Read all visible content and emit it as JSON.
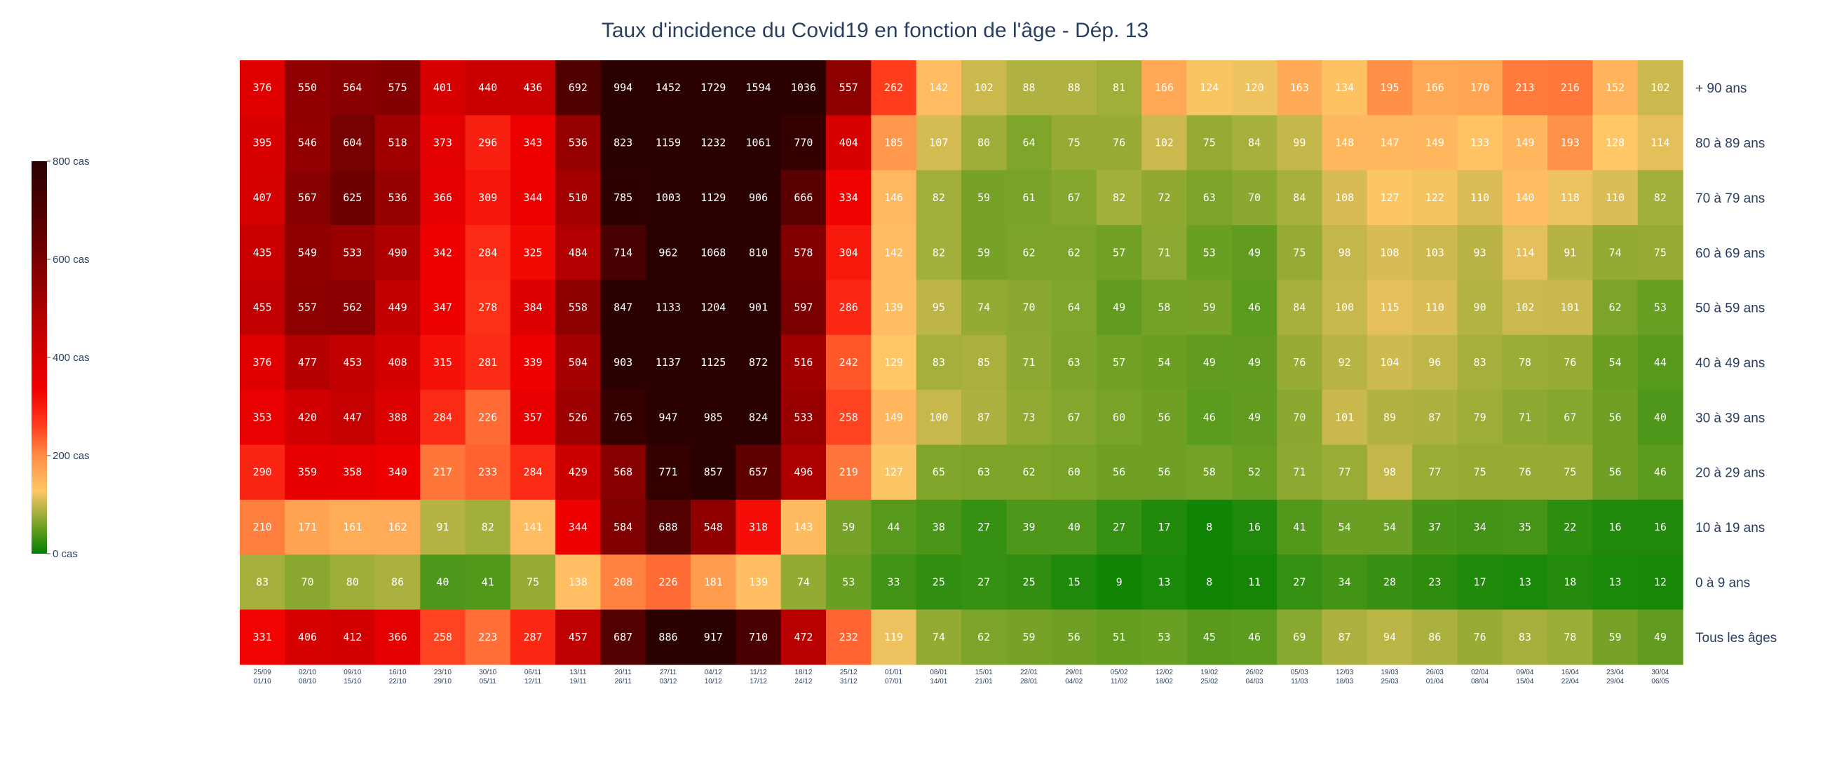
{
  "chart_data": {
    "type": "heatmap",
    "title": "Taux d'incidence du Covid19 en fonction de l'âge - Dép. 13",
    "rows": [
      "+ 90 ans",
      "80 à 89 ans",
      "70 à 79 ans",
      "60 à 69 ans",
      "50 à 59 ans",
      "40 à 49 ans",
      "30 à 39 ans",
      "20 à 29 ans",
      "10 à 19 ans",
      "0 à 9 ans",
      "Tous les âges"
    ],
    "columns": [
      [
        "25/09",
        "01/10"
      ],
      [
        "02/10",
        "08/10"
      ],
      [
        "09/10",
        "15/10"
      ],
      [
        "16/10",
        "22/10"
      ],
      [
        "23/10",
        "29/10"
      ],
      [
        "30/10",
        "05/11"
      ],
      [
        "06/11",
        "12/11"
      ],
      [
        "13/11",
        "19/11"
      ],
      [
        "20/11",
        "26/11"
      ],
      [
        "27/11",
        "03/12"
      ],
      [
        "04/12",
        "10/12"
      ],
      [
        "11/12",
        "17/12"
      ],
      [
        "18/12",
        "24/12"
      ],
      [
        "25/12",
        "31/12"
      ],
      [
        "01/01",
        "07/01"
      ],
      [
        "08/01",
        "14/01"
      ],
      [
        "15/01",
        "21/01"
      ],
      [
        "22/01",
        "28/01"
      ],
      [
        "29/01",
        "04/02"
      ],
      [
        "05/02",
        "11/02"
      ],
      [
        "12/02",
        "18/02"
      ],
      [
        "19/02",
        "25/02"
      ],
      [
        "26/02",
        "04/03"
      ],
      [
        "05/03",
        "11/03"
      ],
      [
        "12/03",
        "18/03"
      ],
      [
        "19/03",
        "25/03"
      ],
      [
        "26/03",
        "01/04"
      ],
      [
        "02/04",
        "08/04"
      ],
      [
        "09/04",
        "15/04"
      ],
      [
        "16/04",
        "22/04"
      ],
      [
        "23/04",
        "29/04"
      ],
      [
        "30/04",
        "06/05"
      ]
    ],
    "values": [
      [
        376,
        550,
        564,
        575,
        401,
        440,
        436,
        692,
        994,
        1452,
        1729,
        1594,
        1036,
        557,
        262,
        142,
        102,
        88,
        88,
        81,
        166,
        124,
        120,
        163,
        134,
        195,
        166,
        170,
        213,
        216,
        152,
        102
      ],
      [
        395,
        546,
        604,
        518,
        373,
        296,
        343,
        536,
        823,
        1159,
        1232,
        1061,
        770,
        404,
        185,
        107,
        80,
        64,
        75,
        76,
        102,
        75,
        84,
        99,
        148,
        147,
        149,
        133,
        149,
        193,
        128,
        114
      ],
      [
        407,
        567,
        625,
        536,
        366,
        309,
        344,
        510,
        785,
        1003,
        1129,
        906,
        666,
        334,
        146,
        82,
        59,
        61,
        67,
        82,
        72,
        63,
        70,
        84,
        108,
        127,
        122,
        110,
        140,
        118,
        110,
        82
      ],
      [
        435,
        549,
        533,
        490,
        342,
        284,
        325,
        484,
        714,
        962,
        1068,
        810,
        578,
        304,
        142,
        82,
        59,
        62,
        62,
        57,
        71,
        53,
        49,
        75,
        98,
        108,
        103,
        93,
        114,
        91,
        74,
        75
      ],
      [
        455,
        557,
        562,
        449,
        347,
        278,
        384,
        558,
        847,
        1133,
        1204,
        901,
        597,
        286,
        139,
        95,
        74,
        70,
        64,
        49,
        58,
        59,
        46,
        84,
        100,
        115,
        110,
        90,
        102,
        101,
        62,
        53
      ],
      [
        376,
        477,
        453,
        408,
        315,
        281,
        339,
        504,
        903,
        1137,
        1125,
        872,
        516,
        242,
        129,
        83,
        85,
        71,
        63,
        57,
        54,
        49,
        49,
        76,
        92,
        104,
        96,
        83,
        78,
        76,
        54,
        44
      ],
      [
        353,
        420,
        447,
        388,
        284,
        226,
        357,
        526,
        765,
        947,
        985,
        824,
        533,
        258,
        149,
        100,
        87,
        73,
        67,
        60,
        56,
        46,
        49,
        70,
        101,
        89,
        87,
        79,
        71,
        67,
        56,
        40
      ],
      [
        290,
        359,
        358,
        340,
        217,
        233,
        284,
        429,
        568,
        771,
        857,
        657,
        496,
        219,
        127,
        65,
        63,
        62,
        60,
        56,
        56,
        58,
        52,
        71,
        77,
        98,
        77,
        75,
        76,
        75,
        56,
        46
      ],
      [
        210,
        171,
        161,
        162,
        91,
        82,
        141,
        344,
        584,
        688,
        548,
        318,
        143,
        59,
        44,
        38,
        27,
        39,
        40,
        27,
        17,
        8,
        16,
        41,
        54,
        54,
        37,
        34,
        35,
        22,
        16,
        16
      ],
      [
        83,
        70,
        80,
        86,
        40,
        41,
        75,
        138,
        208,
        226,
        181,
        139,
        74,
        53,
        33,
        25,
        27,
        25,
        15,
        9,
        13,
        8,
        11,
        27,
        34,
        28,
        23,
        17,
        13,
        18,
        13,
        12
      ],
      [
        331,
        406,
        412,
        366,
        258,
        223,
        287,
        457,
        687,
        886,
        917,
        710,
        472,
        232,
        119,
        74,
        62,
        59,
        56,
        51,
        53,
        45,
        46,
        69,
        87,
        94,
        86,
        76,
        83,
        78,
        59,
        49
      ]
    ],
    "colorscale": {
      "range": [
        0,
        800
      ],
      "stops": [
        [
          0,
          "#008000"
        ],
        [
          0.08,
          "#7fa52a"
        ],
        [
          0.16,
          "#ffc766"
        ],
        [
          0.25,
          "#ff8c46"
        ],
        [
          0.33,
          "#ff3a1c"
        ],
        [
          0.42,
          "#f00000"
        ],
        [
          0.55,
          "#c80000"
        ],
        [
          0.7,
          "#8b0000"
        ],
        [
          0.85,
          "#550000"
        ],
        [
          1,
          "#2a0000"
        ]
      ],
      "tick_values": [
        0,
        200,
        400,
        600,
        800
      ],
      "tick_labels": [
        "0 cas",
        "200 cas",
        "400 cas",
        "600 cas",
        "800 cas"
      ]
    }
  }
}
